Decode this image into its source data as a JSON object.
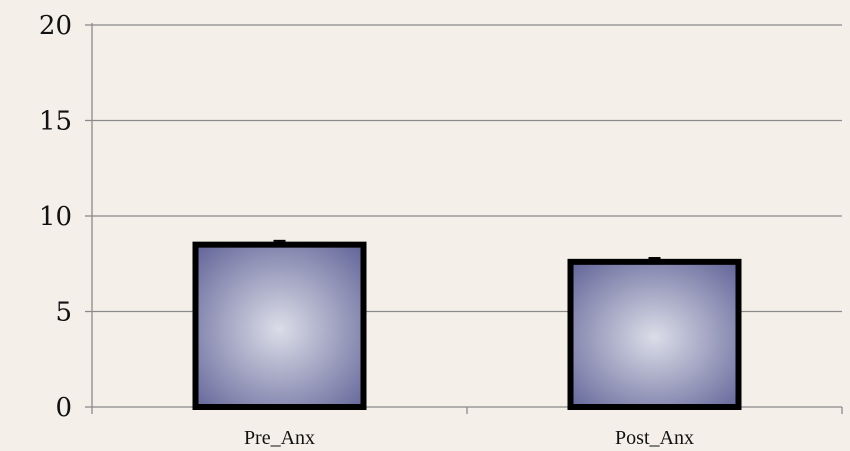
{
  "chart_data": {
    "type": "bar",
    "categories": [
      "Pre_Anx",
      "Post_Anx"
    ],
    "values": [
      8.5,
      7.6
    ],
    "error": [
      0.2,
      0.2
    ],
    "ylim": [
      0,
      20
    ],
    "yticks": [
      0,
      5,
      10,
      15,
      20
    ],
    "ytick_labels": [
      "0",
      "5",
      "10",
      "15",
      "20"
    ],
    "grid": true,
    "title": "",
    "xlabel": "",
    "ylabel": ""
  },
  "colors": {
    "background": "#f4f0e9",
    "bar_center": "#dcdde8",
    "bar_edge": "#5a5d93",
    "bar_outline": "#000000",
    "gridline": "#8a8a8a"
  }
}
